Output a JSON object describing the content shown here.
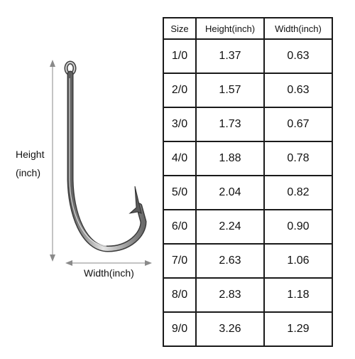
{
  "labels": {
    "height_line1": "Height",
    "height_line2": "(inch)",
    "width": "Width(inch)"
  },
  "icons": {
    "hook": "fishing-hook-icon"
  },
  "table": {
    "headers": [
      "Size",
      "Height(inch)",
      "Width(inch)"
    ],
    "rows": [
      [
        "1/0",
        "1.37",
        "0.63"
      ],
      [
        "2/0",
        "1.57",
        "0.63"
      ],
      [
        "3/0",
        "1.73",
        "0.67"
      ],
      [
        "4/0",
        "1.88",
        "0.78"
      ],
      [
        "5/0",
        "2.04",
        "0.82"
      ],
      [
        "6/0",
        "2.24",
        "0.90"
      ],
      [
        "7/0",
        "2.63",
        "1.06"
      ],
      [
        "8/0",
        "2.83",
        "1.18"
      ],
      [
        "9/0",
        "3.26",
        "1.29"
      ]
    ]
  }
}
